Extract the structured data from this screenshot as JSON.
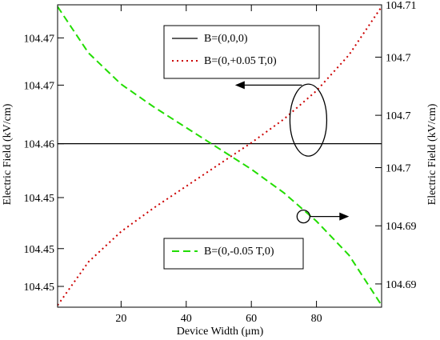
{
  "chart_data": {
    "type": "line",
    "xlabel": "Device Width (μm)",
    "ylabel_left": "Electric Field (kV/cm)",
    "ylabel_right": "Electric Field (kV/cm)",
    "xlim": [
      0.5,
      100
    ],
    "ylim_left": [
      104.443,
      104.475
    ],
    "ylim_right": [
      104.684,
      104.71
    ],
    "x_ticks": [
      {
        "value": 20,
        "label": "20"
      },
      {
        "value": 40,
        "label": "40"
      },
      {
        "value": 60,
        "label": "60"
      },
      {
        "value": 80,
        "label": "80"
      }
    ],
    "y_left_ticks": [
      {
        "value": 104.4715,
        "label": "104.47"
      },
      {
        "value": 104.4665,
        "label": "104.47"
      },
      {
        "value": 104.4603,
        "label": "104.46"
      },
      {
        "value": 104.4546,
        "label": "104.45"
      },
      {
        "value": 104.4492,
        "label": "104.45"
      },
      {
        "value": 104.4452,
        "label": "104.45"
      }
    ],
    "y_right_ticks": [
      {
        "value": 104.71,
        "label": "104.71"
      },
      {
        "value": 104.7055,
        "label": "104.7"
      },
      {
        "value": 104.7005,
        "label": "104.7"
      },
      {
        "value": 104.696,
        "label": "104.7"
      },
      {
        "value": 104.691,
        "label": "104.69"
      },
      {
        "value": 104.686,
        "label": "104.69"
      }
    ],
    "series": [
      {
        "name": "B=(0,0,0)",
        "axis": "left",
        "color": "#000000",
        "dash": "solid",
        "x": [
          0.5,
          10,
          20,
          30,
          40,
          50,
          60,
          70,
          80,
          90,
          100
        ],
        "y": [
          104.4603,
          104.4603,
          104.4603,
          104.4603,
          104.4603,
          104.4603,
          104.4603,
          104.4603,
          104.4603,
          104.4603,
          104.4603
        ]
      },
      {
        "name": "B=(0,+0.05 T,0)",
        "axis": "left",
        "color": "#cc0000",
        "dash": "dotted",
        "x": [
          0.5,
          10,
          20,
          30,
          40,
          50,
          60,
          70,
          80,
          90,
          100
        ],
        "y": [
          104.4432,
          104.4478,
          104.451,
          104.4535,
          104.4558,
          104.4581,
          104.4604,
          104.4629,
          104.4659,
          104.4697,
          104.4748
        ]
      },
      {
        "name": "B=(0,-0.05 T,0)",
        "axis": "left",
        "color": "#22dd00",
        "dash": "dashed",
        "x": [
          0.5,
          10,
          20,
          30,
          40,
          50,
          60,
          70,
          80,
          90,
          100
        ],
        "y": [
          104.4748,
          104.4699,
          104.4666,
          104.4642,
          104.462,
          104.4598,
          104.4576,
          104.4551,
          104.4521,
          104.4485,
          104.4432
        ]
      }
    ],
    "legend_top": [
      "B=(0,0,0)",
      "B=(0,+0.05 T,0)"
    ],
    "legend_bottom": [
      "B=(0,-0.05 T,0)"
    ],
    "annotations": [
      {
        "kind": "ellipse-arrow-left",
        "target_axis": "left",
        "x": 77.5,
        "y": 104.4628,
        "arrow_to_x": 55,
        "arrow_y": 104.4665
      },
      {
        "kind": "circle-arrow-right",
        "target_axis": "right",
        "x": 76,
        "y": 104.6918,
        "arrow_to_x": 90
      }
    ]
  }
}
